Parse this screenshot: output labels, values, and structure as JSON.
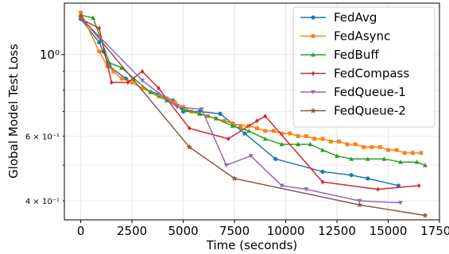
{
  "chart_data": {
    "type": "line",
    "title": "",
    "xlabel": "Time (seconds)",
    "ylabel": "Global Model Test Loss",
    "xlim": [
      -800,
      17500
    ],
    "ylim": [
      0.355,
      1.38
    ],
    "yscale": "log",
    "grid": true,
    "legend_position": "top-right",
    "x_ticks": [
      {
        "value": 0,
        "label": "0"
      },
      {
        "value": 2500,
        "label": "2500"
      },
      {
        "value": 5000,
        "label": "5000"
      },
      {
        "value": 7500,
        "label": "7500"
      },
      {
        "value": 10000,
        "label": "10000"
      },
      {
        "value": 12500,
        "label": "12500"
      },
      {
        "value": 15000,
        "label": "15000"
      },
      {
        "value": 17500,
        "label": "17500"
      }
    ],
    "y_ticks": [
      {
        "value": 1.0,
        "label": "10⁰",
        "major": true
      },
      {
        "value": 0.6,
        "label": "6 × 10⁻¹",
        "major": false
      },
      {
        "value": 0.4,
        "label": "4 × 10⁻¹",
        "major": false
      }
    ],
    "series": [
      {
        "name": "FedAvg",
        "color": "#1f77b4",
        "marker": "circle",
        "x": [
          0,
          900,
          1100,
          1400,
          2200,
          3000,
          3800,
          4500,
          5000,
          5800,
          6800,
          8000,
          9500,
          11800,
          13200,
          14000,
          15500
        ],
        "y": [
          1.25,
          1.08,
          1.02,
          0.93,
          0.86,
          0.81,
          0.78,
          0.75,
          0.7,
          0.7,
          0.69,
          0.61,
          0.52,
          0.48,
          0.47,
          0.46,
          0.44
        ]
      },
      {
        "name": "FedAsync",
        "color": "#ff7f0e",
        "marker": "square",
        "x": [
          0,
          900,
          1300,
          1600,
          2000,
          2500,
          3000,
          3400,
          3800,
          4200,
          4600,
          5000,
          5400,
          5800,
          6200,
          6600,
          7000,
          7400,
          7800,
          8200,
          8600,
          9000,
          9400,
          9800,
          10200,
          10600,
          11000,
          11400,
          11800,
          12200,
          12600,
          13000,
          13400,
          13800,
          14200,
          14600,
          15000,
          15400,
          15800,
          16200,
          16600
        ],
        "y": [
          1.3,
          1.02,
          0.93,
          0.9,
          0.86,
          0.84,
          0.81,
          0.79,
          0.77,
          0.76,
          0.74,
          0.72,
          0.7,
          0.69,
          0.68,
          0.67,
          0.66,
          0.65,
          0.64,
          0.64,
          0.63,
          0.62,
          0.62,
          0.61,
          0.61,
          0.6,
          0.6,
          0.59,
          0.59,
          0.58,
          0.58,
          0.57,
          0.57,
          0.56,
          0.56,
          0.56,
          0.55,
          0.55,
          0.54,
          0.54,
          0.54
        ]
      },
      {
        "name": "FedBuff",
        "color": "#2ca02c",
        "marker": "triangle",
        "x": [
          0,
          600,
          1400,
          2000,
          2600,
          3400,
          4200,
          5000,
          5800,
          6600,
          7400,
          8200,
          9000,
          9800,
          10600,
          11200,
          11800,
          12500,
          13200,
          14000,
          14800,
          15600,
          16400,
          16800
        ],
        "y": [
          1.28,
          1.26,
          0.95,
          0.92,
          0.86,
          0.79,
          0.75,
          0.71,
          0.69,
          0.67,
          0.64,
          0.62,
          0.59,
          0.57,
          0.57,
          0.57,
          0.55,
          0.53,
          0.52,
          0.52,
          0.52,
          0.51,
          0.51,
          0.5
        ]
      },
      {
        "name": "FedCompass",
        "color": "#d62728",
        "marker": "diamond",
        "x": [
          0,
          900,
          1500,
          2300,
          3000,
          3800,
          5300,
          7200,
          8600,
          9000,
          11800,
          14500,
          16500
        ],
        "y": [
          1.25,
          1.18,
          0.84,
          0.84,
          0.9,
          0.81,
          0.63,
          0.59,
          0.66,
          0.68,
          0.45,
          0.43,
          0.44
        ]
      },
      {
        "name": "FedQueue-1",
        "color": "#9467bd",
        "marker": "triangle-down",
        "x": [
          0,
          3000,
          4700,
          5900,
          7100,
          8300,
          9800,
          11000,
          13600,
          15600
        ],
        "y": [
          1.26,
          0.85,
          0.72,
          0.71,
          0.5,
          0.53,
          0.44,
          0.43,
          0.4,
          0.395
        ]
      },
      {
        "name": "FedQueue-2",
        "color": "#8c564b",
        "marker": "star",
        "x": [
          0,
          5300,
          7500,
          13600,
          16800
        ],
        "y": [
          1.27,
          0.56,
          0.46,
          0.39,
          0.365
        ]
      }
    ]
  }
}
